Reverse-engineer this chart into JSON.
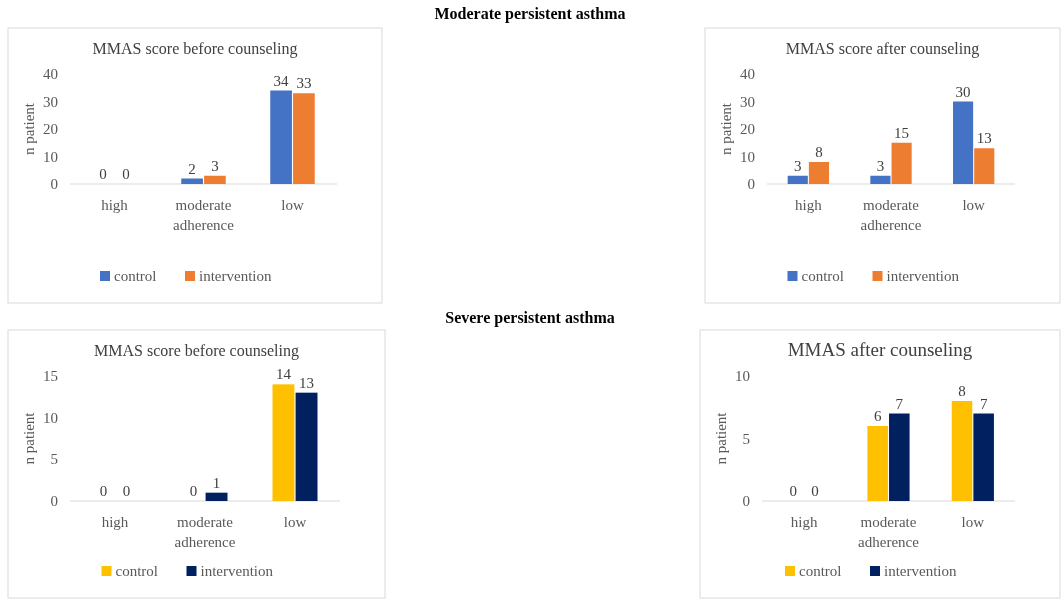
{
  "chart_data": [
    {
      "type": "bar",
      "title": "MMAS score before counseling",
      "annotations": [
        "Moderate persistent asthma"
      ],
      "categories": [
        "high",
        "moderate",
        "low"
      ],
      "xlabel": "adherence",
      "ylabel": "n patient",
      "ylim": [
        0,
        40
      ],
      "yticks": [
        0,
        10,
        20,
        30,
        40
      ],
      "legend": "bottom",
      "data_labels": true,
      "series": [
        {
          "name": "control",
          "color": "#4472c4",
          "values": [
            0,
            2,
            34
          ]
        },
        {
          "name": "intervention",
          "color": "#ed7d31",
          "values": [
            0,
            3,
            33
          ]
        }
      ]
    },
    {
      "type": "bar",
      "title": "MMAS score after counseling",
      "categories": [
        "high",
        "moderate",
        "low"
      ],
      "xlabel": "adherence",
      "ylabel": "n patient",
      "ylim": [
        0,
        40
      ],
      "yticks": [
        0,
        10,
        20,
        30,
        40
      ],
      "legend": "bottom",
      "data_labels": true,
      "series": [
        {
          "name": "control",
          "color": "#4472c4",
          "values": [
            3,
            3,
            30
          ]
        },
        {
          "name": "intervention",
          "color": "#ed7d31",
          "values": [
            8,
            15,
            13
          ]
        }
      ]
    },
    {
      "type": "bar",
      "title": "MMAS score before counseling",
      "annotations": [
        "Severe persistent asthma"
      ],
      "categories": [
        "high",
        "moderate",
        "low"
      ],
      "xlabel": "adherence",
      "ylabel": "n patient",
      "ylim": [
        0,
        15
      ],
      "yticks": [
        0,
        5,
        10,
        15
      ],
      "legend": "bottom",
      "data_labels": true,
      "series": [
        {
          "name": "control",
          "color": "#ffc000",
          "values": [
            0,
            0,
            14
          ]
        },
        {
          "name": "intervention",
          "color": "#002060",
          "values": [
            0,
            1,
            13
          ]
        }
      ]
    },
    {
      "type": "bar",
      "title": "MMAS after counseling",
      "categories": [
        "high",
        "moderate",
        "low"
      ],
      "xlabel": "adherence",
      "ylabel": "n patient",
      "ylim": [
        0,
        10
      ],
      "yticks": [
        0,
        5,
        10
      ],
      "legend": "bottom",
      "data_labels": true,
      "series": [
        {
          "name": "control",
          "color": "#ffc000",
          "values": [
            0,
            6,
            8
          ]
        },
        {
          "name": "intervention",
          "color": "#002060",
          "values": [
            0,
            7,
            7
          ]
        }
      ]
    }
  ]
}
